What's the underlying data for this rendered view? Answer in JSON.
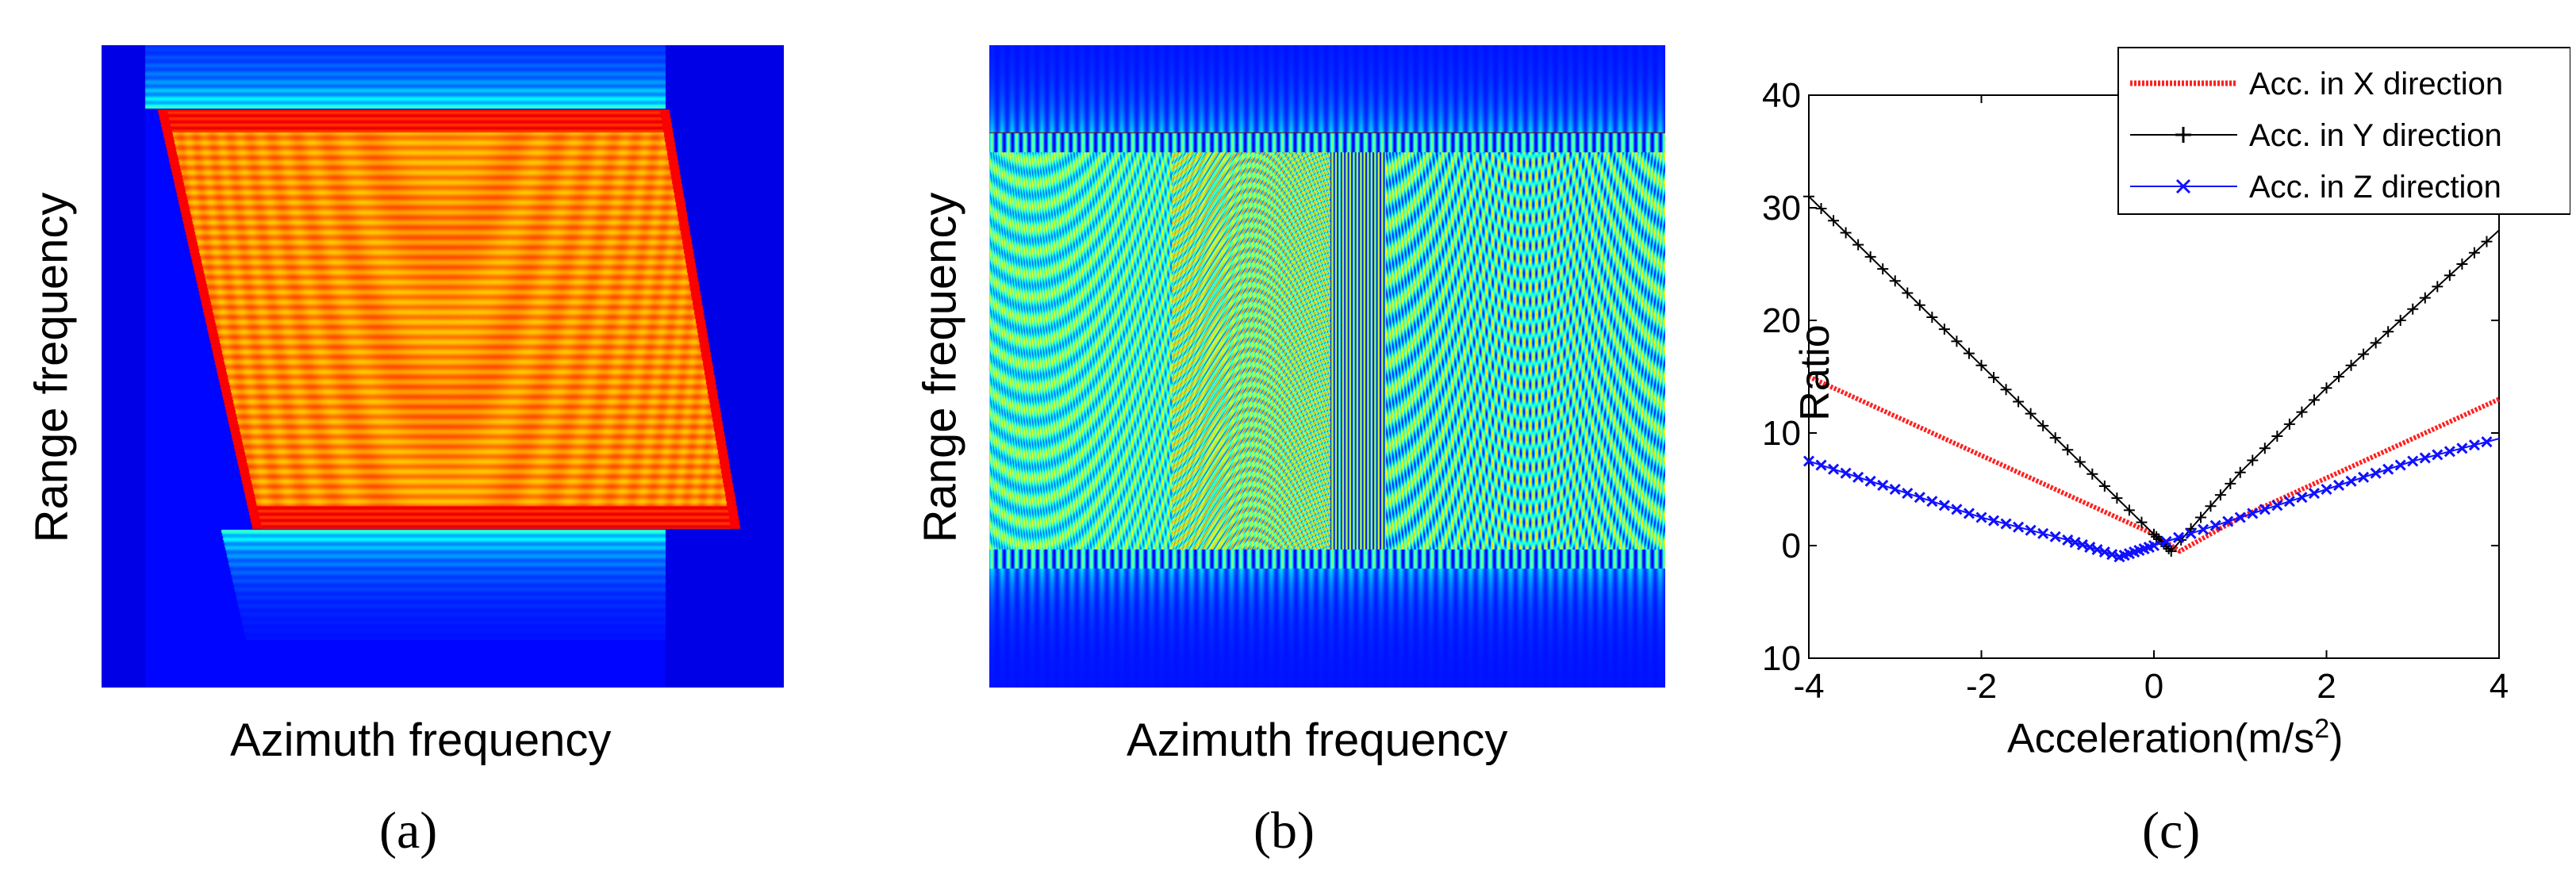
{
  "panels": [
    {
      "id": "a",
      "label": "(a)",
      "xlabel": "Azimuth frequency",
      "ylabel": "Range frequency"
    },
    {
      "id": "b",
      "label": "(b)",
      "xlabel": "Azimuth frequency",
      "ylabel": "Range frequency"
    },
    {
      "id": "c",
      "label": "(c)"
    }
  ],
  "chart_data": [
    {
      "type": "heatmap",
      "panel": "a",
      "title": "",
      "xlabel": "Azimuth frequency",
      "ylabel": "Range frequency",
      "colormap": "jet"
    },
    {
      "type": "heatmap",
      "panel": "b",
      "title": "",
      "xlabel": "Azimuth frequency",
      "ylabel": "Range frequency",
      "colormap": "jet"
    },
    {
      "type": "line",
      "panel": "c",
      "title": "",
      "xlabel": "Acceleration(m/s",
      "xlabel_sup": "2",
      "xlabel_end": ")",
      "ylabel": "Ratio",
      "xlim": [
        -4,
        4
      ],
      "ylim": [
        -10,
        40
      ],
      "xticks": [
        -4,
        -2,
        0,
        2,
        4
      ],
      "yticks": [
        -10,
        0,
        10,
        20,
        30,
        40
      ],
      "grid": false,
      "legend_position": "top-right",
      "series": [
        {
          "name": "Acc. in X direction",
          "color": "#ff2020",
          "marker": "dot",
          "x": [
            -4,
            -3,
            -2,
            -1,
            0,
            0.3,
            1,
            2,
            3,
            4
          ],
          "y": [
            15,
            11.5,
            8,
            4.5,
            1,
            -0.5,
            2.5,
            6,
            9.5,
            13
          ]
        },
        {
          "name": "Acc. in Y direction",
          "color": "#000000",
          "marker": "plus",
          "x": [
            -4,
            -3,
            -2,
            -1,
            0,
            0.2,
            1,
            2,
            3,
            4
          ],
          "y": [
            31,
            23.5,
            16,
            8.5,
            1,
            -0.5,
            6.5,
            14,
            21,
            28
          ]
        },
        {
          "name": "Acc. in Z direction",
          "color": "#1010ff",
          "marker": "x",
          "x": [
            -4,
            -3,
            -2,
            -1,
            -0.4,
            0,
            1,
            2,
            3,
            4
          ],
          "y": [
            7.5,
            5,
            2.5,
            0.5,
            -1,
            0,
            2.5,
            5,
            7.5,
            9.5
          ]
        }
      ]
    }
  ]
}
